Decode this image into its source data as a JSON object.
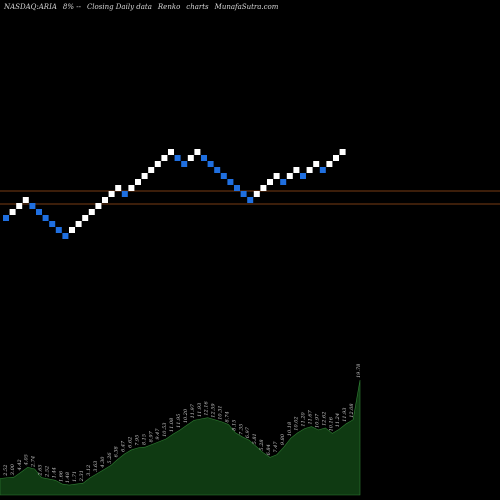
{
  "header": {
    "symbol": "NASDAQ:ARIA",
    "change": "8% --",
    "type": "Closing Daily data",
    "chart_kind": "Renko",
    "word": "charts",
    "site": "MunafaSutra.com"
  },
  "colors": {
    "background": "#000000",
    "brick_up": "#ffffff",
    "brick_down": "#1f6fe0",
    "level_line": "#a0521b",
    "volume_fill": "#0f3a12",
    "volume_stroke": "#2e7d32"
  },
  "chart_data": [
    {
      "type": "renko",
      "brick_sequence": [
        "down",
        "up",
        "up",
        "up",
        "down",
        "down",
        "down",
        "down",
        "down",
        "down",
        "up",
        "up",
        "up",
        "up",
        "up",
        "up",
        "up",
        "up",
        "down",
        "up",
        "up",
        "up",
        "up",
        "up",
        "up",
        "up",
        "down",
        "down",
        "up",
        "up",
        "down",
        "down",
        "down",
        "down",
        "down",
        "down",
        "down",
        "down",
        "up",
        "up",
        "up",
        "up",
        "down",
        "up",
        "up",
        "down",
        "up",
        "up",
        "down",
        "up",
        "up",
        "up"
      ],
      "levels": [
        "upper",
        "lower"
      ]
    },
    {
      "type": "area",
      "series": [
        {
          "values": [
            2.41,
            2.52,
            2.6,
            3.3,
            4.05,
            3.8,
            2.55,
            2.35,
            2.15,
            1.6,
            1.45,
            1.6,
            1.72,
            2.5,
            3.1,
            3.7,
            4.3,
            5.2,
            6.0,
            6.6,
            6.9,
            7.0,
            7.4,
            7.8,
            8.2,
            8.9,
            9.5,
            10.2,
            10.9,
            11.1,
            11.3,
            11.0,
            10.7,
            10.3,
            9.1,
            8.5,
            8.0,
            7.1,
            6.2,
            5.5,
            5.9,
            7.0,
            8.3,
            9.1,
            9.7,
            10.0,
            9.5,
            9.8,
            9.0,
            9.6,
            10.4,
            11.0,
            16.8
          ],
          "labels": [
            "2.41",
            "2.52",
            "3.00",
            "4.42",
            "4.05",
            "2.74",
            "2.65",
            "2.52",
            "1.44",
            "1.66",
            "1.48",
            "1.71",
            "2.31",
            "3.12",
            "3.63",
            "4.30",
            "5.26",
            "6.38",
            "6.47",
            "6.62",
            "7.95",
            "8.15",
            "8.97",
            "9.47",
            "10.53",
            "11.08",
            "11.95",
            "10.20",
            "11.97",
            "11.93",
            "12.16",
            "12.59",
            "10.31",
            "8.74",
            "8.15",
            "7.35",
            "6.97",
            "5.81",
            "5.28",
            "6.84",
            "7.47",
            "9.80",
            "10.18",
            "10.02",
            "11.20",
            "11.67",
            "10.97",
            "12.62",
            "10.16",
            "11.24",
            "11.93",
            "12.08",
            "19.78"
          ],
          "final_label": "19.78"
        }
      ]
    }
  ]
}
